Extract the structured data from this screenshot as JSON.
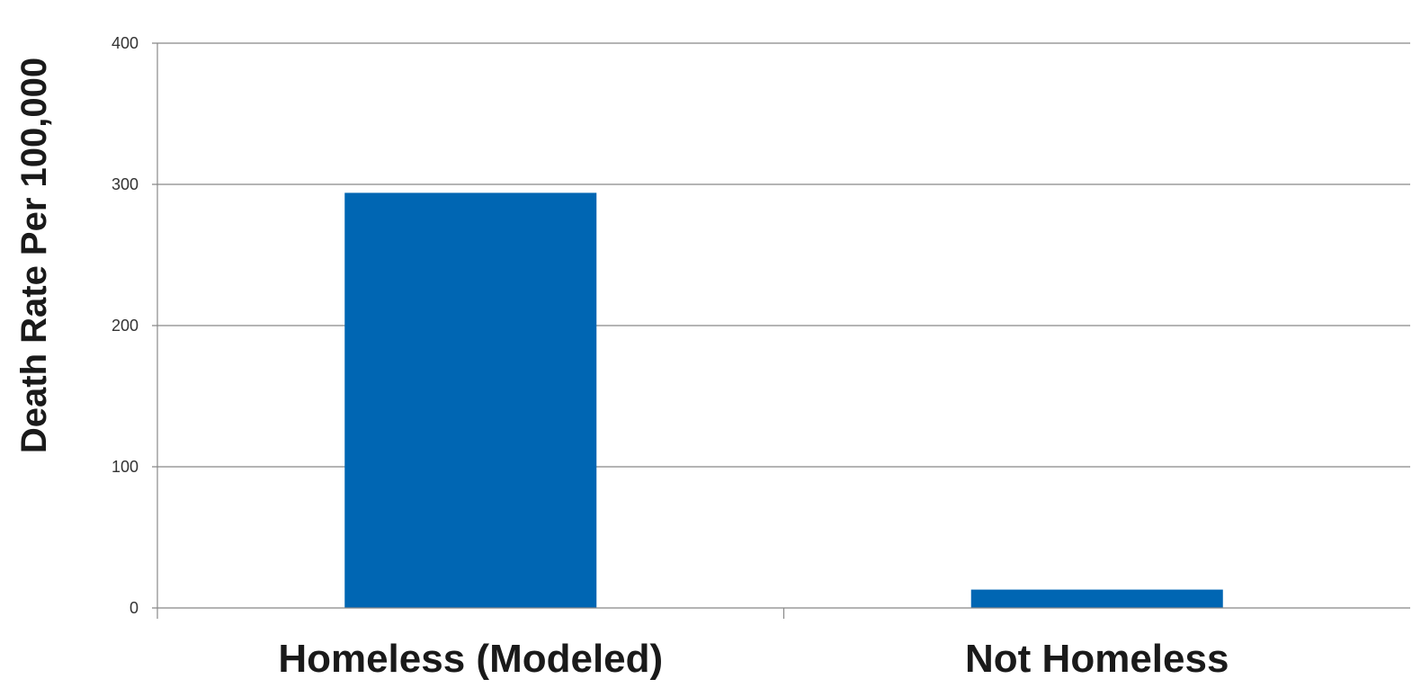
{
  "chart_data": {
    "type": "bar",
    "title": "",
    "xlabel": "",
    "ylabel": "Death Rate  Per  100,000",
    "categories": [
      "Homeless (Modeled)",
      "Not Homeless"
    ],
    "values": [
      294,
      13
    ],
    "ylim": [
      0,
      400
    ],
    "yticks": [
      0,
      100,
      200,
      300,
      400
    ],
    "grid": true,
    "legend": "none",
    "bar_color": "#0066b3",
    "grid_color": "#888888"
  }
}
